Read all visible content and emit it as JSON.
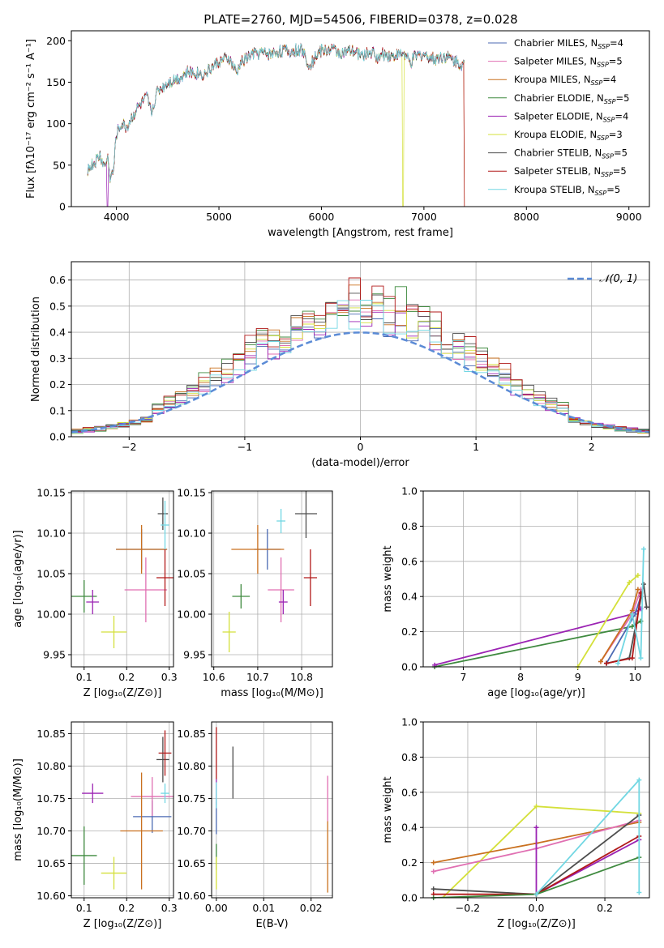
{
  "chart_data": [
    {
      "type": "line",
      "title": "PLATE=2760, MJD=54506, FIBERID=0378, z=0.028",
      "xlabel": "wavelength [Angstrom, rest frame]",
      "ylabel": "Flux [fλ10⁻¹⁷ erg cm⁻² s⁻¹ A⁻¹]",
      "xlim": [
        3560,
        9200
      ],
      "ylim": [
        0,
        212
      ],
      "xticks": [
        "4000",
        "5000",
        "6000",
        "7000",
        "8000",
        "9000"
      ],
      "yticks": [
        "0",
        "50",
        "100",
        "150",
        "200"
      ],
      "grid": false,
      "legend_position": "upper right",
      "legend": [
        {
          "label": "Chabrier MILES, N",
          "sub": "SSP",
          "suffix": "=4"
        },
        {
          "label": "Salpeter MILES, N",
          "sub": "SSP",
          "suffix": "=5"
        },
        {
          "label": "Kroupa MILES, N",
          "sub": "SSP",
          "suffix": "=4"
        },
        {
          "label": "Chabrier ELODIE, N",
          "sub": "SSP",
          "suffix": "=5"
        },
        {
          "label": "Salpeter ELODIE, N",
          "sub": "SSP",
          "suffix": "=4"
        },
        {
          "label": "Kroupa ELODIE, N",
          "sub": "SSP",
          "suffix": "=3"
        },
        {
          "label": "Chabrier STELIB, N",
          "sub": "SSP",
          "suffix": "=5"
        },
        {
          "label": "Salpeter STELIB, N",
          "sub": "SSP",
          "suffix": "=5"
        },
        {
          "label": "Kroupa STELIB, N",
          "sub": "SSP",
          "suffix": "=5"
        }
      ],
      "spectrum_nodes": {
        "x": [
          3720,
          3800,
          3840,
          3880,
          3920,
          3933,
          3968,
          4000,
          4050,
          4100,
          4150,
          4200,
          4300,
          4340,
          4400,
          4500,
          4600,
          4700,
          4861,
          5000,
          5100,
          5175,
          5200,
          5300,
          5400,
          5500,
          5600,
          5700,
          5800,
          5893,
          5950,
          6000,
          6100,
          6200,
          6300,
          6400,
          6500,
          6563,
          6600,
          6700,
          6800,
          6870,
          6900,
          7000,
          7100,
          7200,
          7300,
          7400
        ],
        "y": [
          45,
          55,
          62,
          48,
          60,
          35,
          40,
          88,
          100,
          95,
          108,
          118,
          132,
          112,
          140,
          150,
          155,
          162,
          160,
          175,
          178,
          160,
          172,
          182,
          186,
          184,
          188,
          187,
          190,
          170,
          183,
          188,
          190,
          185,
          187,
          183,
          186,
          178,
          184,
          182,
          185,
          172,
          180,
          184,
          178,
          182,
          176,
          170
        ]
      },
      "spectrum_drops": {
        "Salpeter ELODIE": [
          3905,
          3915
        ],
        "Kroupa ELODIE": [
          6790,
          6795
        ],
        "Salpeter STELIB": [
          7395,
          7400
        ],
        "Kroupa MILES": [
          7395,
          7400
        ]
      },
      "series_colors": [
        "#4b6ab3",
        "#e06fb2",
        "#c9701f",
        "#3f8a3f",
        "#9b23b3",
        "#d4e03a",
        "#4d4d4d",
        "#b11919",
        "#72d7e3"
      ]
    },
    {
      "type": "bar",
      "xlabel": "(data-model)/error",
      "ylabel": "Normed distribution",
      "xlim": [
        -2.5,
        2.5
      ],
      "ylim": [
        0,
        0.67
      ],
      "xticks": [
        "−2",
        "−1",
        "0",
        "1",
        "2"
      ],
      "yticks": [
        "0.0",
        "0.1",
        "0.2",
        "0.3",
        "0.4",
        "0.5",
        "0.6"
      ],
      "grid": true,
      "legend_position": "upper right",
      "gaussian_label": "𝒩(0, 1)",
      "bin_width": 0.1
    },
    {
      "type": "scatter",
      "xlabel": "Z [log₁₀(Z/Z⊙)]",
      "ylabel": "age  [log₁₀(age/yr)]",
      "xlim": [
        0.07,
        0.31
      ],
      "ylim": [
        9.935,
        10.152
      ],
      "xticks": [
        "0.1",
        "0.2",
        "0.3"
      ],
      "yticks": [
        "9.95",
        "10.00",
        "10.05",
        "10.10",
        "10.15"
      ],
      "grid": true,
      "points": [
        {
          "x": 0.235,
          "y": 10.08,
          "ex": 0.06,
          "ey": 0.025,
          "color": "#4b6ab3"
        },
        {
          "x": 0.245,
          "y": 10.03,
          "ex": 0.05,
          "ey": 0.04,
          "color": "#e06fb2"
        },
        {
          "x": 0.235,
          "y": 10.08,
          "ex": 0.06,
          "ey": 0.03,
          "color": "#c9701f"
        },
        {
          "x": 0.1,
          "y": 10.022,
          "ex": 0.03,
          "ey": 0.02,
          "color": "#3f8a3f"
        },
        {
          "x": 0.12,
          "y": 10.015,
          "ex": 0.015,
          "ey": 0.015,
          "color": "#9b23b3"
        },
        {
          "x": 0.17,
          "y": 9.978,
          "ex": 0.03,
          "ey": 0.02,
          "color": "#d4e03a"
        },
        {
          "x": 0.285,
          "y": 10.124,
          "ex": 0.012,
          "ey": 0.02,
          "color": "#4d4d4d"
        },
        {
          "x": 0.29,
          "y": 10.045,
          "ex": 0.02,
          "ey": 0.035,
          "color": "#b11919"
        },
        {
          "x": 0.29,
          "y": 10.11,
          "ex": 0.01,
          "ey": 0.03,
          "color": "#72d7e3"
        }
      ]
    },
    {
      "type": "scatter",
      "xlabel": "mass [log₁₀(M/M⊙)]",
      "xlim": [
        0.595,
        0.87
      ],
      "ylim": [
        9.935,
        10.152
      ],
      "xticks": [
        "10.6",
        "10.7",
        "10.8"
      ],
      "xtick_values": [
        0.6,
        0.7,
        0.8
      ],
      "yticks": [
        "9.95",
        "10.00",
        "10.05",
        "10.10",
        "10.15"
      ],
      "grid": true,
      "points": [
        {
          "x": 0.722,
          "y": 10.08,
          "ex": 0.03,
          "ey": 0.025,
          "color": "#4b6ab3"
        },
        {
          "x": 0.753,
          "y": 10.03,
          "ex": 0.03,
          "ey": 0.04,
          "color": "#e06fb2"
        },
        {
          "x": 0.7,
          "y": 10.08,
          "ex": 0.06,
          "ey": 0.03,
          "color": "#c9701f"
        },
        {
          "x": 0.662,
          "y": 10.022,
          "ex": 0.02,
          "ey": 0.015,
          "color": "#3f8a3f"
        },
        {
          "x": 0.758,
          "y": 10.015,
          "ex": 0.01,
          "ey": 0.015,
          "color": "#9b23b3"
        },
        {
          "x": 0.635,
          "y": 9.978,
          "ex": 0.015,
          "ey": 0.025,
          "color": "#d4e03a"
        },
        {
          "x": 0.81,
          "y": 10.124,
          "ex": 0.025,
          "ey": 0.03,
          "color": "#4d4d4d"
        },
        {
          "x": 0.82,
          "y": 10.045,
          "ex": 0.015,
          "ey": 0.035,
          "color": "#b11919"
        },
        {
          "x": 0.753,
          "y": 10.115,
          "ex": 0.01,
          "ey": 0.015,
          "color": "#72d7e3"
        }
      ]
    },
    {
      "type": "line",
      "xlabel": "age  [log₁₀(age/yr)]",
      "ylabel": "mass weight",
      "xlim": [
        6.3,
        10.25
      ],
      "ylim": [
        0,
        1
      ],
      "xticks": [
        "7",
        "8",
        "9",
        "10"
      ],
      "yticks": [
        "0.0",
        "0.2",
        "0.4",
        "0.6",
        "0.8",
        "1.0"
      ],
      "grid": true,
      "series": [
        {
          "name": "Chabrier ELODIE",
          "color": "#3f8a3f",
          "x": [
            6.5,
            9.95,
            10.1
          ],
          "y": [
            0.0,
            0.23,
            0.26
          ]
        },
        {
          "name": "Salpeter ELODIE",
          "color": "#9b23b3",
          "x": [
            6.5,
            9.95,
            10.1
          ],
          "y": [
            0.01,
            0.3,
            0.33
          ]
        },
        {
          "name": "Kroupa ELODIE",
          "color": "#d4e03a",
          "x": [
            9.0,
            9.9,
            10.05
          ],
          "y": [
            0.0,
            0.48,
            0.52
          ]
        },
        {
          "name": "Chabrier MILES",
          "color": "#4b6ab3",
          "x": [
            9.5,
            10.0,
            10.1
          ],
          "y": [
            0.02,
            0.3,
            0.4
          ]
        },
        {
          "name": "Salpeter MILES",
          "color": "#e06fb2",
          "x": [
            9.4,
            9.95,
            10.1
          ],
          "y": [
            0.03,
            0.3,
            0.44
          ]
        },
        {
          "name": "Kroupa MILES",
          "color": "#c9701f",
          "x": [
            9.4,
            9.95,
            10.05
          ],
          "y": [
            0.03,
            0.32,
            0.44
          ]
        },
        {
          "name": "Chabrier STELIB",
          "color": "#4d4d4d",
          "x": [
            9.5,
            9.9,
            10.15,
            10.2
          ],
          "y": [
            0.02,
            0.05,
            0.47,
            0.34
          ]
        },
        {
          "name": "Salpeter STELIB",
          "color": "#b11919",
          "x": [
            9.5,
            9.95,
            10.1
          ],
          "y": [
            0.02,
            0.05,
            0.42
          ]
        },
        {
          "name": "Kroupa STELIB",
          "color": "#72d7e3",
          "x": [
            9.7,
            9.95,
            10.1,
            10.15
          ],
          "y": [
            0.02,
            0.3,
            0.05,
            0.67
          ]
        }
      ]
    },
    {
      "type": "scatter",
      "xlabel": "Z [log₁₀(Z/Z⊙)]",
      "ylabel": "mass [log₁₀(M/M⊙)]",
      "xlim": [
        0.07,
        0.31
      ],
      "ylim": [
        10.597,
        10.868
      ],
      "xticks": [
        "0.1",
        "0.2",
        "0.3"
      ],
      "yticks": [
        "10.60",
        "10.65",
        "10.70",
        "10.75",
        "10.80",
        "10.85"
      ],
      "ytick_values": [
        10.6,
        10.65,
        10.7,
        10.75,
        10.8,
        10.85
      ],
      "grid": true,
      "points": [
        {
          "x": 0.26,
          "y": 10.722,
          "ex": 0.045,
          "ey": 0.025,
          "color": "#4b6ab3"
        },
        {
          "x": 0.26,
          "y": 10.753,
          "ex": 0.05,
          "ey": 0.03,
          "color": "#e06fb2"
        },
        {
          "x": 0.235,
          "y": 10.7,
          "ex": 0.05,
          "ey": 0.09,
          "color": "#c9701f"
        },
        {
          "x": 0.1,
          "y": 10.662,
          "ex": 0.03,
          "ey": 0.045,
          "color": "#3f8a3f"
        },
        {
          "x": 0.12,
          "y": 10.758,
          "ex": 0.025,
          "ey": 0.015,
          "color": "#9b23b3"
        },
        {
          "x": 0.17,
          "y": 10.635,
          "ex": 0.03,
          "ey": 0.025,
          "color": "#d4e03a"
        },
        {
          "x": 0.285,
          "y": 10.81,
          "ex": 0.015,
          "ey": 0.035,
          "color": "#4d4d4d"
        },
        {
          "x": 0.29,
          "y": 10.82,
          "ex": 0.015,
          "ey": 0.035,
          "color": "#b11919"
        },
        {
          "x": 0.29,
          "y": 10.758,
          "ex": 0.01,
          "ey": 0.015,
          "color": "#72d7e3"
        }
      ]
    },
    {
      "type": "scatter",
      "xlabel": "E(B-V)",
      "xlim": [
        -0.001,
        0.0245
      ],
      "ylim": [
        10.597,
        10.868
      ],
      "xticks": [
        "0.00",
        "0.01",
        "0.02"
      ],
      "xtick_values": [
        0.0,
        0.01,
        0.02
      ],
      "yticks": [
        "10.60",
        "10.65",
        "10.70",
        "10.75",
        "10.80",
        "10.85"
      ],
      "grid": true,
      "points": [
        {
          "x": 0.0,
          "y": 10.72,
          "ex": 0.0,
          "ey": 0.025,
          "color": "#4b6ab3"
        },
        {
          "x": 0.0235,
          "y": 10.75,
          "ex": 0.0,
          "ey": 0.035,
          "color": "#e06fb2"
        },
        {
          "x": 0.0235,
          "y": 10.66,
          "ex": 0.0,
          "ey": 0.055,
          "color": "#c9701f"
        },
        {
          "x": 0.0,
          "y": 10.66,
          "ex": 0.0,
          "ey": 0.02,
          "color": "#3f8a3f"
        },
        {
          "x": 0.0,
          "y": 10.76,
          "ex": 0.0,
          "ey": 0.02,
          "color": "#9b23b3"
        },
        {
          "x": 0.0,
          "y": 10.635,
          "ex": 0.0,
          "ey": 0.025,
          "color": "#d4e03a"
        },
        {
          "x": 0.0035,
          "y": 10.79,
          "ex": 0.0,
          "ey": 0.04,
          "color": "#4d4d4d"
        },
        {
          "x": 0.0,
          "y": 10.82,
          "ex": 0.0,
          "ey": 0.04,
          "color": "#b11919"
        },
        {
          "x": 0.0,
          "y": 10.755,
          "ex": 0.0,
          "ey": 0.02,
          "color": "#72d7e3"
        }
      ]
    },
    {
      "type": "line",
      "xlabel": "Z [log₁₀(Z/Z⊙)]",
      "ylabel": "mass weight",
      "xlim": [
        -0.33,
        0.33
      ],
      "ylim": [
        0,
        1
      ],
      "xticks": [
        "−0.2",
        "0.0",
        "0.2"
      ],
      "xtick_values": [
        -0.2,
        0.0,
        0.2
      ],
      "yticks": [
        "0.0",
        "0.2",
        "0.4",
        "0.6",
        "0.8",
        "1.0"
      ],
      "grid": true,
      "series": [
        {
          "name": "Kroupa ELODIE",
          "color": "#d4e03a",
          "x": [
            -0.3,
            0.0,
            0.3
          ],
          "y": [
            -0.05,
            0.52,
            0.48
          ]
        },
        {
          "name": "Kroupa MILES",
          "color": "#c9701f",
          "x": [
            -0.3,
            0.0,
            0.3
          ],
          "y": [
            0.2,
            0.31,
            0.43
          ]
        },
        {
          "name": "Salpeter MILES",
          "color": "#e06fb2",
          "x": [
            -0.3,
            0.0,
            0.3
          ],
          "y": [
            0.15,
            0.28,
            0.44
          ]
        },
        {
          "name": "Salpeter ELODIE",
          "color": "#9b23b3",
          "x": [
            0.0,
            0.0,
            0.3
          ],
          "y": [
            0.4,
            0.02,
            0.33
          ]
        },
        {
          "name": "Chabrier STELIB",
          "color": "#4d4d4d",
          "x": [
            -0.3,
            0.0,
            0.3
          ],
          "y": [
            0.05,
            0.02,
            0.47
          ]
        },
        {
          "name": "Salpeter STELIB",
          "color": "#b11919",
          "x": [
            -0.3,
            0.0,
            0.3
          ],
          "y": [
            0.02,
            0.02,
            0.35
          ]
        },
        {
          "name": "Chabrier ELODIE",
          "color": "#3f8a3f",
          "x": [
            -0.3,
            0.0,
            0.3
          ],
          "y": [
            0.0,
            0.02,
            0.23
          ]
        },
        {
          "name": "Kroupa STELIB",
          "color": "#72d7e3",
          "x": [
            0.0,
            0.3,
            0.3
          ],
          "y": [
            0.02,
            0.67,
            0.03
          ]
        }
      ]
    }
  ]
}
